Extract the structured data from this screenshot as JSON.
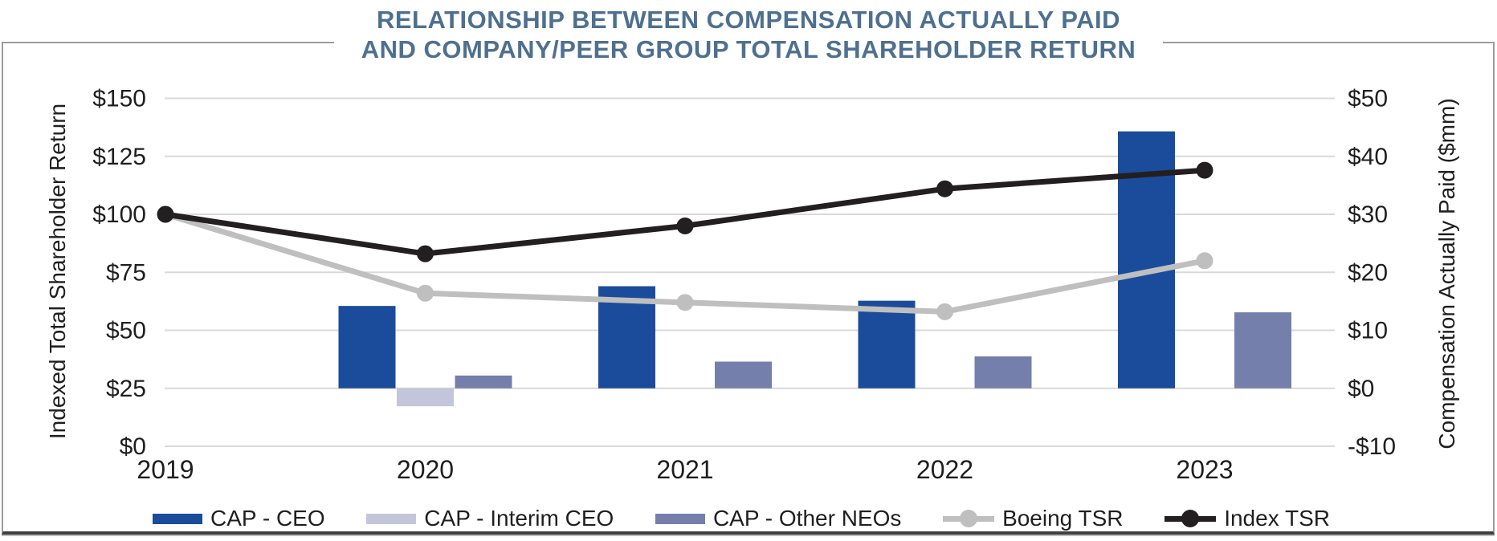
{
  "chart_data": {
    "type": "combo-bar-line",
    "title_line1": "RELATIONSHIP BETWEEN COMPENSATION ACTUALLY PAID",
    "title_line2": "AND COMPANY/PEER GROUP TOTAL SHAREHOLDER RETURN",
    "categories": [
      "2019",
      "2020",
      "2021",
      "2022",
      "2023"
    ],
    "bar_series": [
      {
        "name": "CAP - CEO",
        "color": "#1b4c9b",
        "axis": "right",
        "values": [
          null,
          14.2,
          17.6,
          15.1,
          44.3
        ]
      },
      {
        "name": "CAP - Interim CEO",
        "color": "#c3c6db",
        "axis": "right",
        "values": [
          null,
          -3.1,
          null,
          null,
          null
        ]
      },
      {
        "name": "CAP - Other NEOs",
        "color": "#757fac",
        "axis": "right",
        "values": [
          null,
          2.2,
          4.6,
          5.5,
          13.1
        ]
      }
    ],
    "line_series": [
      {
        "name": "Boeing TSR",
        "color": "#bfbfbf",
        "axis": "left",
        "values": [
          100,
          66,
          62,
          58,
          80
        ]
      },
      {
        "name": "Index TSR",
        "color": "#231f20",
        "axis": "left",
        "values": [
          100,
          83,
          95,
          111,
          119
        ]
      }
    ],
    "left_axis": {
      "title": "Indexed Total Shareholder Return",
      "tick_labels": [
        "$150",
        "$125",
        "$100",
        "$75",
        "$50",
        "$25",
        "$0"
      ],
      "tick_values": [
        150,
        125,
        100,
        75,
        50,
        25,
        0
      ],
      "min": 0,
      "max": 150
    },
    "right_axis": {
      "title": "Compensation Actually Paid ($mm)",
      "tick_labels": [
        "$50",
        "$40",
        "$30",
        "$20",
        "$10",
        "$0",
        "-$10"
      ],
      "tick_values": [
        50,
        40,
        30,
        20,
        10,
        0,
        -10
      ],
      "min": -10,
      "max": 50
    },
    "grid": "horizontal",
    "legend_position": "bottom",
    "colors": {
      "title": "#4e7090",
      "gridline": "#d9d9d9",
      "axis_text": "#1f1f1f",
      "frame": "#9c9c9c"
    }
  }
}
